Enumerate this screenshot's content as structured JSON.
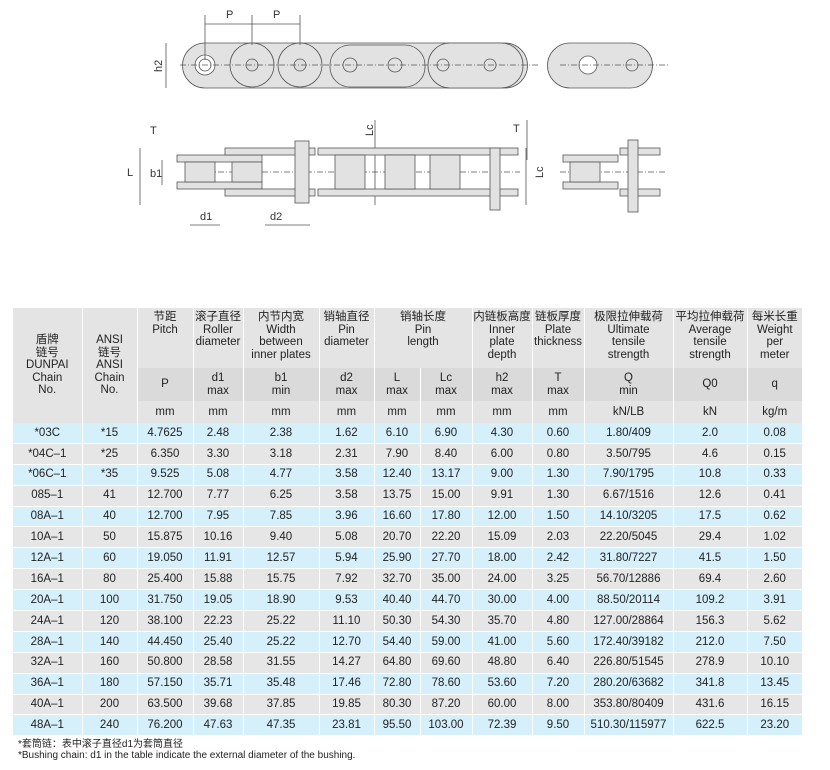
{
  "diagram": {
    "labels": {
      "p1": "P",
      "p2": "P",
      "h2": "h2",
      "T1": "T",
      "Lc1": "Lc",
      "T2": "T",
      "L": "L",
      "b1": "b1",
      "Lc2": "Lc",
      "d1": "d1",
      "d2": "d2"
    }
  },
  "table": {
    "headers": [
      {
        "cn": "盾牌\n链号",
        "en": "DUNPAI\nChain\nNo."
      },
      {
        "cn": "ANSI\n链号",
        "en": "ANSI\nChain\nNo."
      },
      {
        "cn": "节距",
        "en": "Pitch",
        "sym": "P",
        "unit": "mm"
      },
      {
        "cn": "滚子直径",
        "en": "Roller\ndiameter",
        "sym": "d1\nmax",
        "unit": "mm"
      },
      {
        "cn": "内节内宽",
        "en": "Width\nbetween\ninner plates",
        "sym": "b1\nmin",
        "unit": "mm"
      },
      {
        "cn": "销轴直径",
        "en": "Pin\ndiameter",
        "sym": "d2\nmax",
        "unit": "mm"
      },
      {
        "cn": "销轴长度",
        "en": "Pin\nlength",
        "syms": [
          "L\nmax",
          "Lc\nmax"
        ],
        "units": [
          "mm",
          "mm"
        ]
      },
      {
        "cn": "内链板高度",
        "en": "Inner\nplate\ndepth",
        "sym": "h2\nmax",
        "unit": "mm"
      },
      {
        "cn": "链板厚度",
        "en": "Plate\nthickness",
        "sym": "T\nmax",
        "unit": "mm"
      },
      {
        "cn": "极限拉伸载荷",
        "en": "Ultimate\ntensile\nstrength",
        "sym": "Q\nmin",
        "unit": "kN/LB"
      },
      {
        "cn": "平均拉伸载荷",
        "en": "Average\ntensile\nstrength",
        "sym": "Q0",
        "unit": "kN"
      },
      {
        "cn": "每米长重",
        "en": "Weight\nper\nmeter",
        "sym": "q",
        "unit": "kg/m"
      }
    ],
    "rows": [
      [
        "*03C",
        "*15",
        "4.7625",
        "2.48",
        "2.38",
        "1.62",
        "6.10",
        "6.90",
        "4.30",
        "0.60",
        "1.80/409",
        "2.0",
        "0.08"
      ],
      [
        "*04C–1",
        "*25",
        "6.350",
        "3.30",
        "3.18",
        "2.31",
        "7.90",
        "8.40",
        "6.00",
        "0.80",
        "3.50/795",
        "4.6",
        "0.15"
      ],
      [
        "*06C–1",
        "*35",
        "9.525",
        "5.08",
        "4.77",
        "3.58",
        "12.40",
        "13.17",
        "9.00",
        "1.30",
        "7.90/1795",
        "10.8",
        "0.33"
      ],
      [
        "085–1",
        "41",
        "12.700",
        "7.77",
        "6.25",
        "3.58",
        "13.75",
        "15.00",
        "9.91",
        "1.30",
        "6.67/1516",
        "12.6",
        "0.41"
      ],
      [
        "08A–1",
        "40",
        "12.700",
        "7.95",
        "7.85",
        "3.96",
        "16.60",
        "17.80",
        "12.00",
        "1.50",
        "14.10/3205",
        "17.5",
        "0.62"
      ],
      [
        "10A–1",
        "50",
        "15.875",
        "10.16",
        "9.40",
        "5.08",
        "20.70",
        "22.20",
        "15.09",
        "2.03",
        "22.20/5045",
        "29.4",
        "1.02"
      ],
      [
        "12A–1",
        "60",
        "19.050",
        "11.91",
        "12.57",
        "5.94",
        "25.90",
        "27.70",
        "18.00",
        "2.42",
        "31.80/7227",
        "41.5",
        "1.50"
      ],
      [
        "16A–1",
        "80",
        "25.400",
        "15.88",
        "15.75",
        "7.92",
        "32.70",
        "35.00",
        "24.00",
        "3.25",
        "56.70/12886",
        "69.4",
        "2.60"
      ],
      [
        "20A–1",
        "100",
        "31.750",
        "19.05",
        "18.90",
        "9.53",
        "40.40",
        "44.70",
        "30.00",
        "4.00",
        "88.50/20114",
        "109.2",
        "3.91"
      ],
      [
        "24A–1",
        "120",
        "38.100",
        "22.23",
        "25.22",
        "11.10",
        "50.30",
        "54.30",
        "35.70",
        "4.80",
        "127.00/28864",
        "156.3",
        "5.62"
      ],
      [
        "28A–1",
        "140",
        "44.450",
        "25.40",
        "25.22",
        "12.70",
        "54.40",
        "59.00",
        "41.00",
        "5.60",
        "172.40/39182",
        "212.0",
        "7.50"
      ],
      [
        "32A–1",
        "160",
        "50.800",
        "28.58",
        "31.55",
        "14.27",
        "64.80",
        "69.60",
        "48.80",
        "6.40",
        "226.80/51545",
        "278.9",
        "10.10"
      ],
      [
        "36A–1",
        "180",
        "57.150",
        "35.71",
        "35.48",
        "17.46",
        "72.80",
        "78.60",
        "53.60",
        "7.20",
        "280.20/63682",
        "341.8",
        "13.45"
      ],
      [
        "40A–1",
        "200",
        "63.500",
        "39.68",
        "37.85",
        "19.85",
        "80.30",
        "87.20",
        "60.00",
        "8.00",
        "353.80/80409",
        "431.6",
        "16.15"
      ],
      [
        "48A–1",
        "240",
        "76.200",
        "47.63",
        "47.35",
        "23.81",
        "95.50",
        "103.00",
        "72.39",
        "9.50",
        "510.30/115977",
        "622.5",
        "23.20"
      ]
    ]
  },
  "footnotes": {
    "cn": "*套筒链：表中滚子直径d1为套筒直径",
    "en": "*Bushing chain: d1 in the table indicate the external diameter of the bushing."
  },
  "colors": {
    "row_blue": "#d5effb",
    "row_gray": "#e6e6e6",
    "header": "#e4e4e4"
  }
}
